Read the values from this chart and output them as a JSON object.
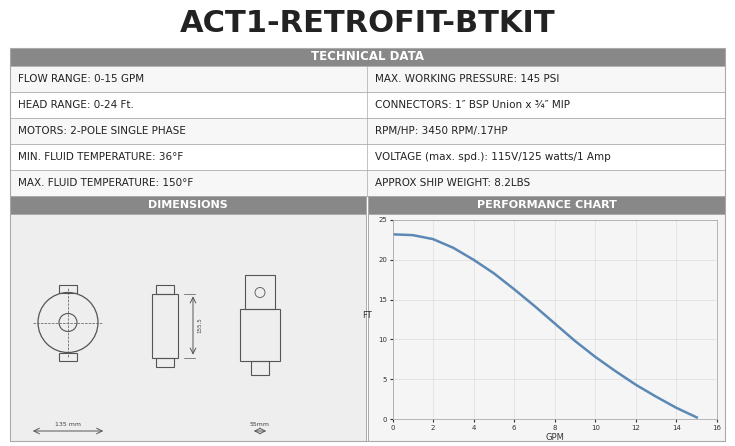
{
  "title": "ACT1-RETROFIT-BTKIT",
  "title_fontsize": 22,
  "header_bg": "#888888",
  "header_text_color": "#ffffff",
  "table_bg": "#ffffff",
  "border_color": "#aaaaaa",
  "tech_header": "TECHNICAL DATA",
  "tech_rows": [
    [
      "FLOW RANGE: 0-15 GPM",
      "MAX. WORKING PRESSURE: 145 PSI"
    ],
    [
      "HEAD RANGE: 0-24 Ft.",
      "CONNECTORS: 1″ BSP Union x ¾″ MIP"
    ],
    [
      "MOTORS: 2-POLE SINGLE PHASE",
      "RPM/HP: 3450 RPM/.17HP"
    ],
    [
      "MIN. FLUID TEMPERATURE: 36°F",
      "VOLTAGE (max. spd.): 115V/125 watts/1 Amp"
    ],
    [
      "MAX. FLUID TEMPERATURE: 150°F",
      "APPROX SHIP WEIGHT: 8.2LBS"
    ]
  ],
  "dim_header": "DIMENSIONS",
  "perf_header": "PERFORMANCE CHART",
  "curve_x": [
    0,
    1,
    2,
    3,
    4,
    5,
    6,
    7,
    8,
    9,
    10,
    11,
    12,
    13,
    14,
    15
  ],
  "curve_y": [
    23.2,
    23.1,
    22.6,
    21.5,
    20.0,
    18.3,
    16.3,
    14.2,
    12.0,
    9.8,
    7.8,
    6.0,
    4.3,
    2.8,
    1.4,
    0.2
  ],
  "curve_color": "#5b88b5",
  "curve_linewidth": 1.8,
  "perf_xlabel": "GPM",
  "perf_ylabel": "FT",
  "perf_xlim": [
    0,
    16
  ],
  "perf_ylim": [
    0,
    25
  ],
  "perf_xticks": [
    0,
    2,
    4,
    6,
    8,
    10,
    12,
    14,
    16
  ],
  "perf_yticks": [
    0,
    5,
    10,
    15,
    20,
    25
  ],
  "cell_fontsize": 7.5,
  "header_fontsize": 8.5,
  "sub_header_fontsize": 8.0,
  "background_color": "#ffffff"
}
